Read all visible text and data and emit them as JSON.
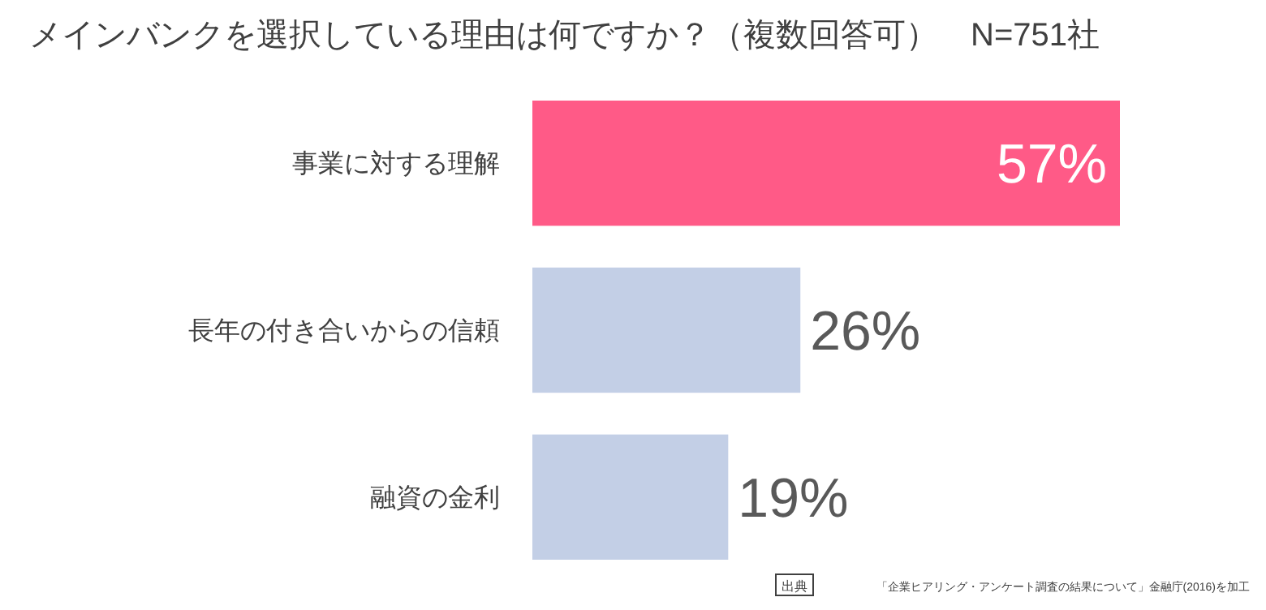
{
  "chart_data": {
    "type": "bar",
    "orientation": "horizontal",
    "title": "メインバンクを選択している理由は何ですか？（複数回答可）　N=751社",
    "categories": [
      "事業に対する理解",
      "長年の付き合いからの信頼",
      "融資の金利"
    ],
    "values": [
      57,
      26,
      19
    ],
    "colors": [
      "#ff5a87",
      "#c3cfe6",
      "#c3cfe6"
    ],
    "value_labels": [
      "57%",
      "26%",
      "19%"
    ],
    "annotations": [
      "出典",
      "「企業ヒアリング・アンケート調査の結果について」金融庁(2016)を加工"
    ]
  }
}
